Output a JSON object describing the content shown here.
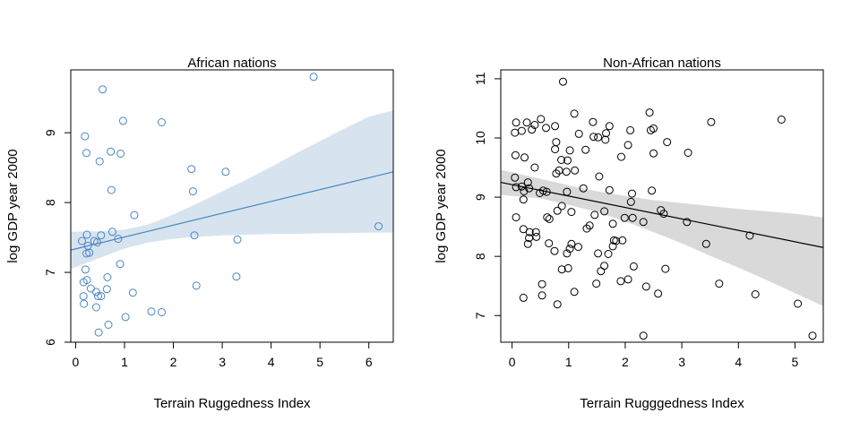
{
  "chart_data": [
    {
      "type": "scatter",
      "title": "African nations",
      "xlabel": "Terrain Ruggedness Index",
      "ylabel": "log GDP year 2000",
      "xlim": [
        -0.1,
        6.5
      ],
      "ylim": [
        6.0,
        9.9
      ],
      "xticks": [
        "0",
        "1",
        "2",
        "3",
        "4",
        "5",
        "6"
      ],
      "yticks": [
        "6",
        "7",
        "8",
        "9"
      ],
      "colors": {
        "points": "#4a86c0",
        "line": "#4a86c0",
        "band": "#d7e4f0"
      },
      "points": [
        {
          "x": 0.55,
          "y": 9.62
        },
        {
          "x": 4.87,
          "y": 9.8
        },
        {
          "x": 0.97,
          "y": 9.17
        },
        {
          "x": 1.76,
          "y": 9.15
        },
        {
          "x": 0.19,
          "y": 8.95
        },
        {
          "x": 0.22,
          "y": 8.71
        },
        {
          "x": 0.72,
          "y": 8.73
        },
        {
          "x": 0.92,
          "y": 8.7
        },
        {
          "x": 0.49,
          "y": 8.59
        },
        {
          "x": 2.37,
          "y": 8.48
        },
        {
          "x": 3.07,
          "y": 8.44
        },
        {
          "x": 0.73,
          "y": 8.18
        },
        {
          "x": 2.4,
          "y": 8.16
        },
        {
          "x": 1.2,
          "y": 7.82
        },
        {
          "x": 0.75,
          "y": 7.58
        },
        {
          "x": 0.23,
          "y": 7.54
        },
        {
          "x": 0.52,
          "y": 7.53
        },
        {
          "x": 2.43,
          "y": 7.53
        },
        {
          "x": 0.13,
          "y": 7.45
        },
        {
          "x": 0.38,
          "y": 7.45
        },
        {
          "x": 0.44,
          "y": 7.43
        },
        {
          "x": 0.87,
          "y": 7.48
        },
        {
          "x": 3.31,
          "y": 7.47
        },
        {
          "x": 0.25,
          "y": 7.38
        },
        {
          "x": 0.22,
          "y": 7.27
        },
        {
          "x": 0.28,
          "y": 7.28
        },
        {
          "x": 6.2,
          "y": 7.66
        },
        {
          "x": 0.91,
          "y": 7.12
        },
        {
          "x": 0.2,
          "y": 7.04
        },
        {
          "x": 3.29,
          "y": 6.94
        },
        {
          "x": 0.65,
          "y": 6.93
        },
        {
          "x": 0.23,
          "y": 6.89
        },
        {
          "x": 0.16,
          "y": 6.86
        },
        {
          "x": 2.47,
          "y": 6.81
        },
        {
          "x": 0.31,
          "y": 6.77
        },
        {
          "x": 0.64,
          "y": 6.76
        },
        {
          "x": 0.42,
          "y": 6.72
        },
        {
          "x": 1.17,
          "y": 6.71
        },
        {
          "x": 0.16,
          "y": 6.66
        },
        {
          "x": 0.52,
          "y": 6.66
        },
        {
          "x": 0.46,
          "y": 6.66
        },
        {
          "x": 0.17,
          "y": 6.55
        },
        {
          "x": 0.42,
          "y": 6.5
        },
        {
          "x": 1.55,
          "y": 6.44
        },
        {
          "x": 1.76,
          "y": 6.43
        },
        {
          "x": 1.02,
          "y": 6.36
        },
        {
          "x": 0.67,
          "y": 6.25
        },
        {
          "x": 0.47,
          "y": 6.14
        }
      ],
      "fit": {
        "x": [
          -0.1,
          6.5
        ],
        "y": [
          7.32,
          8.44
        ]
      },
      "band": {
        "x": [
          -0.1,
          0.5,
          1.0,
          1.5,
          2.0,
          2.5,
          3.0,
          3.5,
          4.0,
          4.5,
          5.0,
          5.5,
          6.0,
          6.5
        ],
        "lower": [
          7.05,
          7.21,
          7.34,
          7.43,
          7.48,
          7.51,
          7.53,
          7.54,
          7.55,
          7.55,
          7.56,
          7.56,
          7.57,
          7.57
        ],
        "upper": [
          7.58,
          7.59,
          7.61,
          7.69,
          7.83,
          7.99,
          8.16,
          8.33,
          8.51,
          8.7,
          8.88,
          9.06,
          9.23,
          9.32
        ]
      }
    },
    {
      "type": "scatter",
      "title": "Non-African nations",
      "xlabel": "Terrain Rugggedness Index",
      "ylabel": "log GDP year 2000",
      "xlim": [
        -0.2,
        5.5
      ],
      "ylim": [
        6.55,
        11.15
      ],
      "xticks": [
        "0",
        "1",
        "2",
        "3",
        "4",
        "5"
      ],
      "yticks": [
        "7",
        "8",
        "9",
        "10",
        "11"
      ],
      "colors": {
        "points": "#000000",
        "line": "#000000",
        "band": "#d9d9d9"
      },
      "points": [
        {
          "x": 0.9,
          "y": 10.95
        },
        {
          "x": 2.43,
          "y": 10.43
        },
        {
          "x": 1.1,
          "y": 10.41
        },
        {
          "x": 4.76,
          "y": 10.31
        },
        {
          "x": 0.51,
          "y": 10.32
        },
        {
          "x": 0.07,
          "y": 10.26
        },
        {
          "x": 0.26,
          "y": 10.26
        },
        {
          "x": 3.52,
          "y": 10.27
        },
        {
          "x": 1.43,
          "y": 10.27
        },
        {
          "x": 0.4,
          "y": 10.22
        },
        {
          "x": 0.6,
          "y": 10.17
        },
        {
          "x": 0.76,
          "y": 10.2
        },
        {
          "x": 1.72,
          "y": 10.2
        },
        {
          "x": 2.5,
          "y": 10.16
        },
        {
          "x": 2.45,
          "y": 10.13
        },
        {
          "x": 2.09,
          "y": 10.13
        },
        {
          "x": 0.05,
          "y": 10.09
        },
        {
          "x": 0.17,
          "y": 10.12
        },
        {
          "x": 1.66,
          "y": 10.08
        },
        {
          "x": 1.18,
          "y": 10.07
        },
        {
          "x": 0.35,
          "y": 10.14
        },
        {
          "x": 1.44,
          "y": 10.02
        },
        {
          "x": 1.65,
          "y": 9.97
        },
        {
          "x": 1.52,
          "y": 10.01
        },
        {
          "x": 2.74,
          "y": 9.93
        },
        {
          "x": 0.78,
          "y": 9.93
        },
        {
          "x": 2.05,
          "y": 9.88
        },
        {
          "x": 1.3,
          "y": 9.8
        },
        {
          "x": 1.02,
          "y": 9.79
        },
        {
          "x": 0.76,
          "y": 9.81
        },
        {
          "x": 3.11,
          "y": 9.75
        },
        {
          "x": 2.5,
          "y": 9.74
        },
        {
          "x": 0.22,
          "y": 9.67
        },
        {
          "x": 1.93,
          "y": 9.68
        },
        {
          "x": 0.06,
          "y": 9.71
        },
        {
          "x": 0.98,
          "y": 9.62
        },
        {
          "x": 0.87,
          "y": 9.63
        },
        {
          "x": 0.4,
          "y": 9.5
        },
        {
          "x": 0.83,
          "y": 9.45
        },
        {
          "x": 0.96,
          "y": 9.43
        },
        {
          "x": 1.11,
          "y": 9.45
        },
        {
          "x": 0.78,
          "y": 9.4
        },
        {
          "x": 1.54,
          "y": 9.35
        },
        {
          "x": 0.05,
          "y": 9.33
        },
        {
          "x": 0.28,
          "y": 9.25
        },
        {
          "x": 0.17,
          "y": 9.18
        },
        {
          "x": 0.21,
          "y": 9.1
        },
        {
          "x": 0.07,
          "y": 9.17
        },
        {
          "x": 0.3,
          "y": 9.15
        },
        {
          "x": 0.49,
          "y": 9.07
        },
        {
          "x": 0.55,
          "y": 9.11
        },
        {
          "x": 0.61,
          "y": 9.09
        },
        {
          "x": 0.97,
          "y": 9.09
        },
        {
          "x": 1.26,
          "y": 9.15
        },
        {
          "x": 2.12,
          "y": 9.06
        },
        {
          "x": 1.72,
          "y": 9.12
        },
        {
          "x": 2.47,
          "y": 9.11
        },
        {
          "x": 2.1,
          "y": 8.92
        },
        {
          "x": 0.88,
          "y": 8.85
        },
        {
          "x": 1.05,
          "y": 8.75
        },
        {
          "x": 1.46,
          "y": 8.7
        },
        {
          "x": 1.63,
          "y": 8.76
        },
        {
          "x": 0.2,
          "y": 8.96
        },
        {
          "x": 0.07,
          "y": 8.66
        },
        {
          "x": 0.62,
          "y": 8.66
        },
        {
          "x": 0.66,
          "y": 8.63
        },
        {
          "x": 1.32,
          "y": 8.47
        },
        {
          "x": 1.37,
          "y": 8.52
        },
        {
          "x": 0.8,
          "y": 8.77
        },
        {
          "x": 1.99,
          "y": 8.65
        },
        {
          "x": 2.63,
          "y": 8.78
        },
        {
          "x": 2.68,
          "y": 8.72
        },
        {
          "x": 2.13,
          "y": 8.65
        },
        {
          "x": 2.32,
          "y": 8.58
        },
        {
          "x": 1.78,
          "y": 8.55
        },
        {
          "x": 3.09,
          "y": 8.58
        },
        {
          "x": 0.2,
          "y": 8.46
        },
        {
          "x": 0.31,
          "y": 8.41
        },
        {
          "x": 0.42,
          "y": 8.41
        },
        {
          "x": 0.3,
          "y": 8.31
        },
        {
          "x": 0.43,
          "y": 8.33
        },
        {
          "x": 0.65,
          "y": 8.22
        },
        {
          "x": 0.28,
          "y": 8.21
        },
        {
          "x": 1.05,
          "y": 8.21
        },
        {
          "x": 1.02,
          "y": 8.13
        },
        {
          "x": 0.97,
          "y": 8.05
        },
        {
          "x": 1.17,
          "y": 8.16
        },
        {
          "x": 1.8,
          "y": 8.27
        },
        {
          "x": 1.84,
          "y": 8.26
        },
        {
          "x": 1.95,
          "y": 8.27
        },
        {
          "x": 1.78,
          "y": 8.17
        },
        {
          "x": 0.75,
          "y": 8.09
        },
        {
          "x": 1.7,
          "y": 8.04
        },
        {
          "x": 1.52,
          "y": 8.05
        },
        {
          "x": 4.2,
          "y": 8.35
        },
        {
          "x": 3.43,
          "y": 8.21
        },
        {
          "x": 1.63,
          "y": 7.84
        },
        {
          "x": 0.99,
          "y": 7.8
        },
        {
          "x": 0.88,
          "y": 7.78
        },
        {
          "x": 2.15,
          "y": 7.83
        },
        {
          "x": 2.71,
          "y": 7.79
        },
        {
          "x": 1.57,
          "y": 7.75
        },
        {
          "x": 1.92,
          "y": 7.58
        },
        {
          "x": 2.05,
          "y": 7.61
        },
        {
          "x": 1.49,
          "y": 7.54
        },
        {
          "x": 0.53,
          "y": 7.53
        },
        {
          "x": 3.66,
          "y": 7.54
        },
        {
          "x": 2.37,
          "y": 7.49
        },
        {
          "x": 1.1,
          "y": 7.4
        },
        {
          "x": 0.2,
          "y": 7.3
        },
        {
          "x": 0.53,
          "y": 7.34
        },
        {
          "x": 2.58,
          "y": 7.37
        },
        {
          "x": 4.3,
          "y": 7.36
        },
        {
          "x": 5.05,
          "y": 7.2
        },
        {
          "x": 0.8,
          "y": 7.19
        },
        {
          "x": 2.32,
          "y": 6.66
        },
        {
          "x": 5.31,
          "y": 6.66
        }
      ],
      "fit": {
        "x": [
          -0.2,
          5.5
        ],
        "y": [
          9.25,
          8.15
        ]
      },
      "band": {
        "x": [
          -0.2,
          0.0,
          0.5,
          1.0,
          1.5,
          2.0,
          2.5,
          3.0,
          3.5,
          4.0,
          4.5,
          5.0,
          5.5
        ],
        "lower": [
          9.04,
          9.02,
          8.98,
          8.87,
          8.75,
          8.59,
          8.41,
          8.22,
          8.01,
          7.81,
          7.6,
          7.38,
          7.16
        ],
        "upper": [
          9.46,
          9.42,
          9.31,
          9.2,
          9.1,
          9.02,
          8.95,
          8.9,
          8.85,
          8.8,
          8.76,
          8.72,
          8.66
        ]
      }
    }
  ]
}
